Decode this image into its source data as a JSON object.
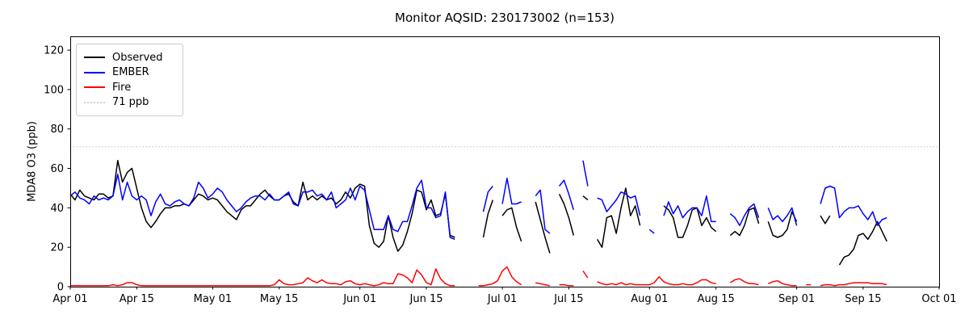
{
  "figure": {
    "monitor_aqsid": "230173002",
    "n": 153
  },
  "chart_data": {
    "type": "line",
    "title": "Monitor AQSID: 230173002 (n=153)",
    "xlabel": "",
    "ylabel": "MDA8 O3 (ppb)",
    "ylim": [
      0,
      127
    ],
    "xlim": [
      0,
      183
    ],
    "x_unit": "days since Apr 01",
    "grid": false,
    "legend_position": "upper left",
    "yticks": [
      0,
      20,
      40,
      60,
      80,
      100,
      120
    ],
    "xticks": [
      {
        "day": 0,
        "label": "Apr 01"
      },
      {
        "day": 14,
        "label": "Apr 15"
      },
      {
        "day": 30,
        "label": "May 01"
      },
      {
        "day": 44,
        "label": "May 15"
      },
      {
        "day": 61,
        "label": "Jun 01"
      },
      {
        "day": 75,
        "label": "Jun 15"
      },
      {
        "day": 91,
        "label": "Jul 01"
      },
      {
        "day": 105,
        "label": "Jul 15"
      },
      {
        "day": 122,
        "label": "Aug 01"
      },
      {
        "day": 136,
        "label": "Aug 15"
      },
      {
        "day": 153,
        "label": "Sep 01"
      },
      {
        "day": 167,
        "label": "Sep 15"
      },
      {
        "day": 183,
        "label": "Oct 01"
      }
    ],
    "threshold": {
      "value": 71,
      "label": "71 ppb",
      "color": "#d3d3d3",
      "style": "dotted"
    },
    "series": [
      {
        "name": "Observed",
        "color": "#000000",
        "style": "solid",
        "values": [
          47,
          44,
          49,
          46,
          45,
          44,
          47,
          47,
          45,
          46,
          64,
          53,
          58,
          60,
          50,
          40,
          33,
          30,
          33,
          37,
          40,
          40,
          41,
          41,
          42,
          41,
          44,
          47,
          46,
          44,
          45,
          44,
          41,
          38,
          36,
          34,
          39,
          41,
          41,
          44,
          47,
          49,
          46,
          44,
          44,
          46,
          47,
          43,
          41,
          53,
          44,
          46,
          44,
          46,
          44,
          45,
          42,
          44,
          48,
          45,
          50,
          52,
          51,
          31,
          22,
          20,
          23,
          36,
          25,
          18,
          21,
          28,
          37,
          49,
          48,
          39,
          44,
          36,
          37,
          47,
          26,
          25,
          null,
          null,
          null,
          null,
          null,
          25,
          37,
          44,
          null,
          36,
          39,
          40,
          30,
          23,
          null,
          null,
          43,
          34,
          25,
          17,
          null,
          47,
          42,
          35,
          26,
          null,
          46,
          44,
          null,
          24,
          20,
          35,
          36,
          27,
          40,
          50,
          36,
          41,
          31,
          null,
          null,
          null,
          null,
          41,
          39,
          35,
          25,
          25,
          31,
          39,
          40,
          31,
          35,
          30,
          28,
          null,
          null,
          26,
          28,
          26,
          31,
          39,
          40,
          32,
          null,
          33,
          26,
          25,
          26,
          29,
          38,
          33,
          null,
          null,
          null,
          null,
          36,
          32,
          36,
          null,
          11,
          15,
          16,
          19,
          26,
          27,
          24,
          28,
          33,
          28,
          23
        ]
      },
      {
        "name": "EMBER",
        "color": "#0000ff",
        "style": "solid",
        "values": [
          46,
          48,
          45,
          44,
          42,
          46,
          44,
          45,
          44,
          46,
          57,
          44,
          53,
          46,
          44,
          46,
          44,
          36,
          43,
          47,
          42,
          41,
          43,
          44,
          42,
          41,
          45,
          53,
          50,
          45,
          47,
          50,
          48,
          44,
          41,
          38,
          40,
          43,
          45,
          46,
          46,
          44,
          47,
          44,
          44,
          46,
          48,
          42,
          41,
          48,
          48,
          49,
          46,
          47,
          44,
          48,
          40,
          42,
          44,
          50,
          44,
          51,
          49,
          39,
          29,
          29,
          29,
          36,
          29,
          28,
          33,
          33,
          41,
          50,
          54,
          40,
          40,
          35,
          36,
          48,
          25,
          24,
          null,
          null,
          null,
          null,
          null,
          38,
          48,
          51,
          null,
          42,
          55,
          42,
          42,
          43,
          null,
          null,
          46,
          49,
          29,
          27,
          null,
          51,
          54,
          47,
          39,
          null,
          64,
          51,
          null,
          45,
          44,
          38,
          41,
          44,
          48,
          47,
          45,
          46,
          36,
          null,
          29,
          27,
          null,
          36,
          43,
          37,
          41,
          35,
          38,
          40,
          40,
          36,
          46,
          33,
          33,
          null,
          null,
          37,
          35,
          31,
          36,
          40,
          42,
          35,
          null,
          40,
          34,
          36,
          33,
          36,
          40,
          31,
          null,
          null,
          null,
          null,
          42,
          50,
          51,
          50,
          35,
          38,
          40,
          40,
          41,
          37,
          34,
          38,
          31,
          34,
          35
        ]
      },
      {
        "name": "Fire",
        "color": "#ff0000",
        "style": "solid",
        "values": [
          0.5,
          0.5,
          0.5,
          0.5,
          0.5,
          0.5,
          0.5,
          0.5,
          0.5,
          1,
          0.5,
          1,
          2,
          2,
          1,
          0.5,
          0.5,
          0.5,
          0.5,
          0.5,
          0.5,
          0.5,
          0.5,
          0.5,
          0.5,
          0.5,
          0.5,
          0.5,
          0.5,
          0.5,
          0.5,
          0.5,
          0.5,
          0.5,
          0.5,
          0.5,
          0.5,
          0.5,
          0.5,
          0.5,
          0.5,
          0.5,
          0.5,
          1,
          3.5,
          1.5,
          1,
          1,
          1.5,
          2,
          4.5,
          3,
          2,
          3.5,
          2,
          1.5,
          1.5,
          1,
          2.5,
          3,
          1.5,
          1,
          1.5,
          1,
          0.5,
          1,
          2,
          1.5,
          1.5,
          6.5,
          6,
          4.5,
          2,
          8.5,
          6,
          2,
          1,
          9,
          4,
          1.5,
          0.5,
          0.5,
          null,
          null,
          null,
          null,
          0.5,
          0.5,
          1,
          1.5,
          3,
          8,
          10,
          5,
          2.5,
          1,
          null,
          null,
          2,
          1.5,
          1,
          0.5,
          null,
          1,
          1,
          0.5,
          0.5,
          null,
          8,
          4.5,
          null,
          2.5,
          1.5,
          1,
          1.5,
          1,
          2,
          1,
          1.5,
          1,
          1,
          1,
          1,
          2,
          5,
          2.5,
          1.5,
          1,
          1,
          1.5,
          1,
          1,
          2,
          3.5,
          3.5,
          2,
          1.5,
          null,
          null,
          2,
          3.5,
          4,
          2.5,
          1.5,
          1.5,
          1,
          null,
          1.5,
          2.5,
          3,
          1.5,
          1,
          0.5,
          0.5,
          null,
          1,
          1,
          null,
          0.5,
          1,
          1,
          0.5,
          1,
          1,
          1.5,
          2,
          2,
          2,
          2,
          1.5,
          1.5,
          1.5,
          1
        ]
      }
    ]
  }
}
